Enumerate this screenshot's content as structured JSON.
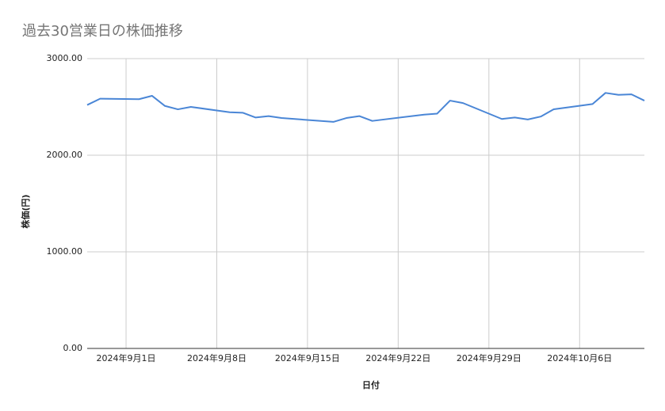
{
  "chart_data": {
    "type": "line",
    "title": "過去30営業日の株価推移",
    "x_label": "日付",
    "y_label": "株価(円)",
    "x": [
      "2024-08-29",
      "2024-08-30",
      "2024-09-02",
      "2024-09-03",
      "2024-09-04",
      "2024-09-05",
      "2024-09-06",
      "2024-09-09",
      "2024-09-10",
      "2024-09-11",
      "2024-09-12",
      "2024-09-13",
      "2024-09-17",
      "2024-09-18",
      "2024-09-19",
      "2024-09-20",
      "2024-09-24",
      "2024-09-25",
      "2024-09-26",
      "2024-09-27",
      "2024-09-30",
      "2024-10-01",
      "2024-10-02",
      "2024-10-03",
      "2024-10-04",
      "2024-10-07",
      "2024-10-08",
      "2024-10-09",
      "2024-10-10",
      "2024-10-11"
    ],
    "series": [
      {
        "name": "株価",
        "color": "#4a86d6",
        "values": [
          2520,
          2585,
          2580,
          2615,
          2510,
          2475,
          2500,
          2445,
          2440,
          2390,
          2405,
          2385,
          2345,
          2385,
          2405,
          2355,
          2420,
          2430,
          2565,
          2540,
          2375,
          2390,
          2370,
          2400,
          2475,
          2530,
          2645,
          2625,
          2630,
          2565
        ]
      }
    ],
    "xlim": [
      "2024-08-29",
      "2024-10-11"
    ],
    "xticks": [
      {
        "value": "2024-09-01",
        "label": "2024年9月1日"
      },
      {
        "value": "2024-09-08",
        "label": "2024年9月8日"
      },
      {
        "value": "2024-09-15",
        "label": "2024年9月15日"
      },
      {
        "value": "2024-09-22",
        "label": "2024年9月22日"
      },
      {
        "value": "2024-09-29",
        "label": "2024年9月29日"
      },
      {
        "value": "2024-10-06",
        "label": "2024年10月6日"
      }
    ],
    "ylim": [
      0,
      3000
    ],
    "yticks": [
      {
        "value": 0,
        "label": "0.00"
      },
      {
        "value": 1000,
        "label": "1000.00"
      },
      {
        "value": 2000,
        "label": "2000.00"
      },
      {
        "value": 3000,
        "label": "3000.00"
      }
    ],
    "grid": true
  }
}
